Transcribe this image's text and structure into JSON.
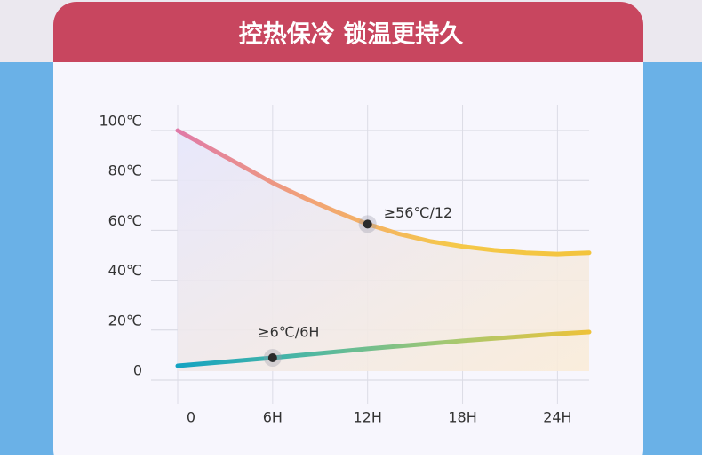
{
  "chart_data": {
    "type": "line",
    "title": "控热保冷 锁温更持久",
    "xlim": [
      0,
      26
    ],
    "xticks": [
      0,
      {
        "value": 6,
        "label": "6H"
      },
      {
        "value": 12,
        "label": "12H"
      },
      {
        "value": 18,
        "label": "18H"
      },
      {
        "value": 24,
        "label": "24H"
      }
    ],
    "ylim": [
      0,
      100
    ],
    "yticks": [
      {
        "value": 0,
        "label": "0"
      },
      {
        "value": 20,
        "label": "20℃"
      },
      {
        "value": 40,
        "label": "40℃"
      },
      {
        "value": 60,
        "label": "60℃"
      },
      {
        "value": 80,
        "label": "80℃"
      },
      {
        "value": 100,
        "label": "100℃"
      }
    ],
    "grid": true,
    "series": [
      {
        "colors": [
          "#e07aa8",
          "#f2a474",
          "#f5c84a",
          "#f3c43c"
        ],
        "x": [
          0,
          2,
          4,
          6,
          8,
          10,
          12,
          14,
          16,
          18,
          20,
          22,
          24,
          26
        ],
        "values": [
          100,
          93,
          86,
          79,
          73,
          67.5,
          62.5,
          58.5,
          55.5,
          53.5,
          52,
          51,
          50.5,
          51
        ]
      },
      {
        "colors": [
          "#14a3c2",
          "#52b8a0",
          "#a6c870",
          "#eec23a"
        ],
        "x": [
          0,
          6,
          12,
          18,
          24,
          26
        ],
        "values": [
          5.7,
          8.9,
          12.5,
          15.7,
          18.5,
          19.2
        ]
      }
    ],
    "annotations": [
      {
        "x": 12,
        "y": 62.5,
        "label": "≥56℃/12"
      },
      {
        "x": 6,
        "y": 8.9,
        "label": "≥6℃/6H"
      }
    ]
  }
}
